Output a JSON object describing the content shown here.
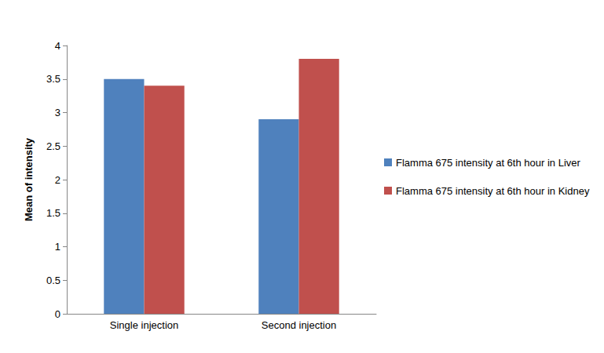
{
  "chart_data": {
    "type": "bar",
    "y_label": "Mean of intensity",
    "categories": [
      "Single injection",
      "Second injection"
    ],
    "series": [
      {
        "name": "Flamma 675 intensity at 6th hour in Liver",
        "color": "#4f81bd",
        "values": [
          3.5,
          2.9
        ]
      },
      {
        "name": "Flamma 675 intensity at 6th hour in Kidney",
        "color": "#c0504d",
        "values": [
          3.4,
          3.8
        ]
      }
    ],
    "ylim": [
      0,
      4
    ],
    "yticks": [
      0,
      0.5,
      1,
      1.5,
      2,
      2.5,
      3,
      3.5,
      4
    ],
    "grid": false,
    "legend": "right"
  }
}
